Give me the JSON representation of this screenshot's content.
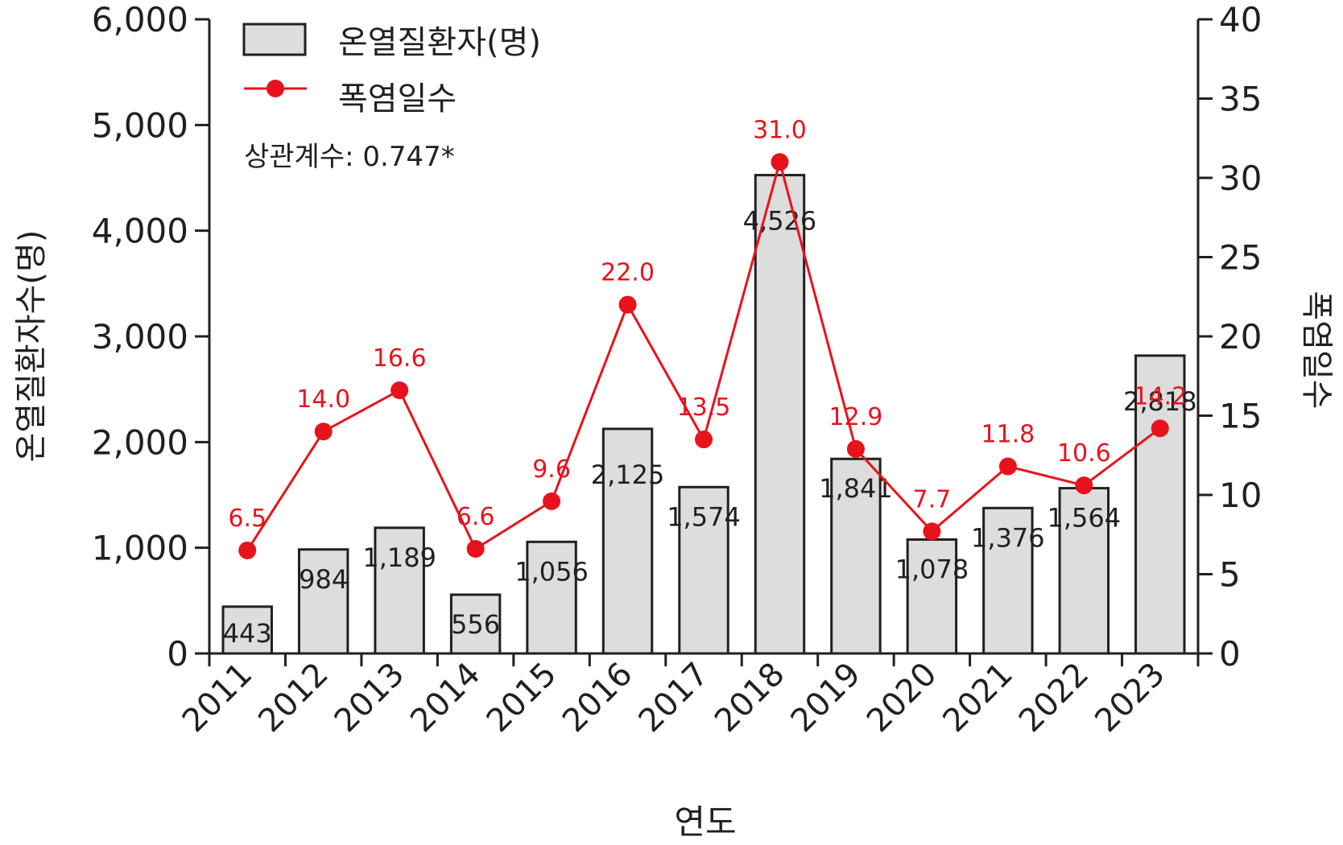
{
  "chart_data": {
    "type": "bar+line",
    "categories": [
      "2011",
      "2012",
      "2013",
      "2014",
      "2015",
      "2016",
      "2017",
      "2018",
      "2019",
      "2020",
      "2021",
      "2022",
      "2023"
    ],
    "xlabel": "연도",
    "series": [
      {
        "name": "온열질환자(명)",
        "kind": "bar",
        "axis": "left",
        "values": [
          443,
          984,
          1189,
          556,
          1056,
          2125,
          1574,
          4526,
          1841,
          1078,
          1376,
          1564,
          2818
        ],
        "labels": [
          "443",
          "984",
          "1,189",
          "556",
          "1,056",
          "2,125",
          "1,574",
          "4,526",
          "1,841",
          "1,078",
          "1,376",
          "1,564",
          "2,818"
        ],
        "color": "#dcdddc"
      },
      {
        "name": "폭염일수",
        "kind": "line",
        "axis": "right",
        "values": [
          6.5,
          14.0,
          16.6,
          6.6,
          9.6,
          22.0,
          13.5,
          31.0,
          12.9,
          7.7,
          11.8,
          10.6,
          14.2
        ],
        "labels": [
          "6.5",
          "14.0",
          "16.6",
          "6.6",
          "9.6",
          "22.0",
          "13.5",
          "31.0",
          "12.9",
          "7.7",
          "11.8",
          "10.6",
          "14.2"
        ],
        "color": "#e8121c"
      }
    ],
    "y_left": {
      "label": "온열질환자수(명)",
      "range": [
        0,
        6000
      ],
      "ticks": [
        0,
        1000,
        2000,
        3000,
        4000,
        5000,
        6000
      ],
      "tick_labels": [
        "0",
        "1,000",
        "2,000",
        "3,000",
        "4,000",
        "5,000",
        "6,000"
      ]
    },
    "y_right": {
      "label": "폭염일수",
      "range": [
        0,
        40
      ],
      "ticks": [
        0,
        5,
        10,
        15,
        20,
        25,
        30,
        35,
        40
      ],
      "tick_labels": [
        "0",
        "5",
        "10",
        "15",
        "20",
        "25",
        "30",
        "35",
        "40"
      ]
    },
    "annotation": "상관계수: 0.747*",
    "legend_position": "top-left",
    "grid": false
  }
}
